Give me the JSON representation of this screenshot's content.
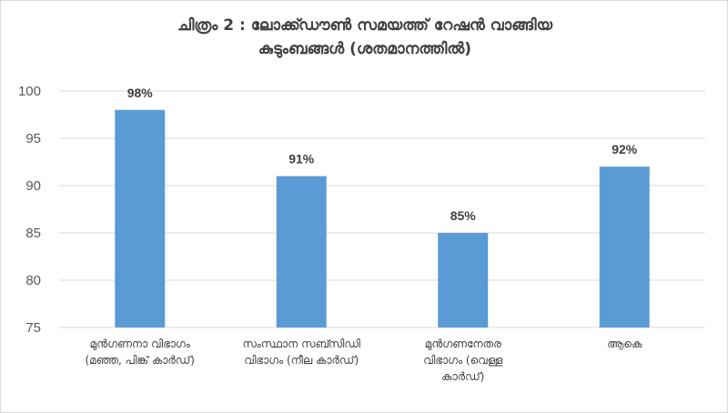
{
  "chart_data": {
    "type": "bar",
    "title_lines": [
      "ചിത്രം 2 : ലോക്ക്ഡൗൺ സമയത്ത് റേഷൻ വാങ്ങിയ",
      "കുടുംബങ്ങൾ (ശതമാനത്തിൽ)"
    ],
    "categories": [
      [
        "മുൻഗണനാ വിഭാഗം",
        "(മഞ്ഞ, പിങ്ക് കാർഡ്)"
      ],
      [
        "സംസ്ഥാന സബ്സിഡി",
        "വിഭാഗം (നീല കാർഡ്)"
      ],
      [
        "മുൻഗണനേതര",
        "വിഭാഗം (വെള്ള",
        "കാർഡ്)"
      ],
      [
        "ആകെ"
      ]
    ],
    "values": [
      98,
      91,
      85,
      92
    ],
    "data_labels": [
      "98%",
      "91%",
      "85%",
      "92%"
    ],
    "ylim": [
      75,
      100
    ],
    "yticks": [
      "75",
      "80",
      "85",
      "90",
      "95",
      "100"
    ],
    "grid": true,
    "bar_color": "#5b9bd5"
  }
}
